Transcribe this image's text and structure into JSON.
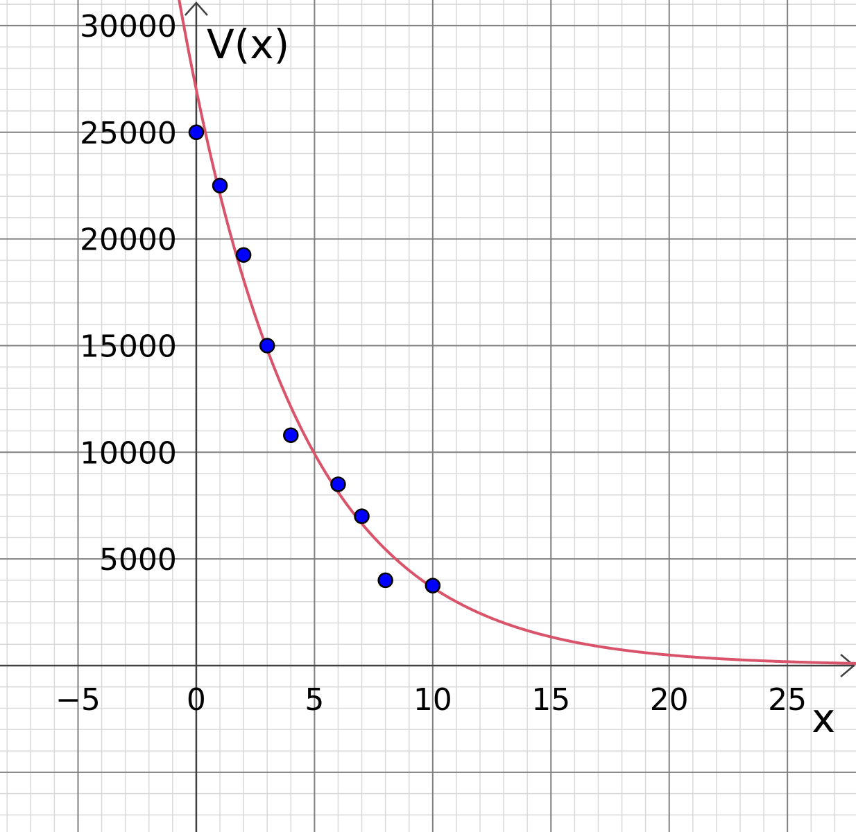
{
  "chart_data": {
    "type": "scatter",
    "xlabel": "x",
    "ylabel": "V(x)",
    "xlim": [
      -8.3,
      27.9
    ],
    "ylim": [
      -7800,
      31200
    ],
    "grid": true,
    "major_grid_step": {
      "x": 5,
      "y": 5000
    },
    "minor_grid_step": {
      "x": 1,
      "y": 1000
    },
    "x_ticks": [
      {
        "value": -5,
        "label": "−5"
      },
      {
        "value": 0,
        "label": "0"
      },
      {
        "value": 5,
        "label": "5"
      },
      {
        "value": 10,
        "label": "10"
      },
      {
        "value": 15,
        "label": "15"
      },
      {
        "value": 20,
        "label": "20"
      },
      {
        "value": 25,
        "label": "25"
      }
    ],
    "y_ticks": [
      {
        "value": 5000,
        "label": "5000"
      },
      {
        "value": 10000,
        "label": "10000"
      },
      {
        "value": 15000,
        "label": "15000"
      },
      {
        "value": 20000,
        "label": "20000"
      },
      {
        "value": 25000,
        "label": "25000"
      },
      {
        "value": 30000,
        "label": "30000"
      }
    ],
    "points": [
      {
        "x": 0,
        "y": 25000
      },
      {
        "x": 1,
        "y": 22500
      },
      {
        "x": 2,
        "y": 19250
      },
      {
        "x": 3,
        "y": 15000
      },
      {
        "x": 4,
        "y": 10800
      },
      {
        "x": 6,
        "y": 8500
      },
      {
        "x": 7,
        "y": 7000
      },
      {
        "x": 8,
        "y": 4000
      },
      {
        "x": 10,
        "y": 3750
      }
    ],
    "curve": {
      "type": "exponential",
      "a": 27000,
      "b": -0.2,
      "x_from": -1,
      "x_to": 28
    },
    "colors": {
      "point_fill": "#0000ff",
      "point_stroke": "#000000",
      "curve": "#d9536a",
      "major_grid": "#808080",
      "minor_grid": "#d9d9d9",
      "axis": "#404040"
    }
  }
}
